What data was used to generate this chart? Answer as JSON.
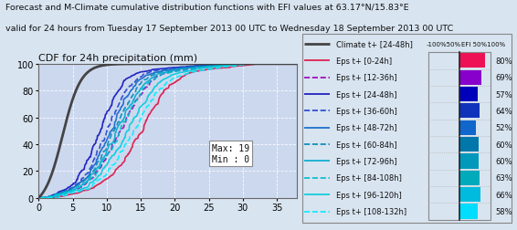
{
  "title_line1": "Forecast and M-Climate cumulative distribution functions with EFI values at 63.17°N/15.83°E",
  "title_line2": "valid for 24 hours from Tuesday 17 September 2013 00 UTC to Wednesday 18 September 2013 00 UTC",
  "plot_title": "CDF for 24h precipitation (mm)",
  "xlim": [
    0,
    38
  ],
  "ylim": [
    0,
    100
  ],
  "xticks": [
    0,
    5,
    10,
    15,
    20,
    25,
    30,
    35
  ],
  "yticks": [
    0,
    20,
    40,
    60,
    80,
    100
  ],
  "annotation_text": "Max: 19\nMin : 0",
  "legend_entries": [
    {
      "label": "Climate t+ [24-48h]",
      "color": "#444444",
      "linestyle": "solid",
      "lw": 2.0
    },
    {
      "label": "Eps t+ [0-24h]",
      "color": "#dd1144",
      "linestyle": "solid",
      "lw": 1.2
    },
    {
      "label": "Eps t+ [12-36h]",
      "color": "#9900bb",
      "linestyle": "dashed",
      "lw": 1.2
    },
    {
      "label": "Eps t+ [24-48h]",
      "color": "#1111bb",
      "linestyle": "solid",
      "lw": 1.2
    },
    {
      "label": "Eps t+ [36-60h]",
      "color": "#2244cc",
      "linestyle": "dashed",
      "lw": 1.2
    },
    {
      "label": "Eps t+ [48-72h]",
      "color": "#1166cc",
      "linestyle": "solid",
      "lw": 1.2
    },
    {
      "label": "Eps t+ [60-84h]",
      "color": "#0088bb",
      "linestyle": "dashed",
      "lw": 1.2
    },
    {
      "label": "Eps t+ [72-96h]",
      "color": "#00aacc",
      "linestyle": "solid",
      "lw": 1.2
    },
    {
      "label": "Eps t+ [84-108h]",
      "color": "#00bbcc",
      "linestyle": "dashed",
      "lw": 1.2
    },
    {
      "label": "Eps t+ [96-120h]",
      "color": "#00ccdd",
      "linestyle": "solid",
      "lw": 1.2
    },
    {
      "label": "Eps t+ [108-132h]",
      "color": "#00eeff",
      "linestyle": "dashed",
      "lw": 1.2
    }
  ],
  "efi_bars": [
    {
      "color": "#ee1155",
      "efi": 0.8,
      "label": "80%"
    },
    {
      "color": "#8800cc",
      "efi": 0.69,
      "label": "69%"
    },
    {
      "color": "#0000bb",
      "efi": 0.57,
      "label": "57%"
    },
    {
      "color": "#1133bb",
      "efi": 0.64,
      "label": "64%"
    },
    {
      "color": "#1166cc",
      "efi": 0.52,
      "label": "52%"
    },
    {
      "color": "#0077aa",
      "efi": 0.6,
      "label": "60%"
    },
    {
      "color": "#0099bb",
      "efi": 0.6,
      "label": "60%"
    },
    {
      "color": "#00aabb",
      "efi": 0.63,
      "label": "63%"
    },
    {
      "color": "#00bbdd",
      "efi": 0.66,
      "label": "66%"
    },
    {
      "color": "#00ddff",
      "efi": 0.58,
      "label": "58%"
    }
  ],
  "bg_color": "#d8e4f0",
  "plot_bg": "#ccd8ee",
  "legend_bg": "#e8eef8"
}
